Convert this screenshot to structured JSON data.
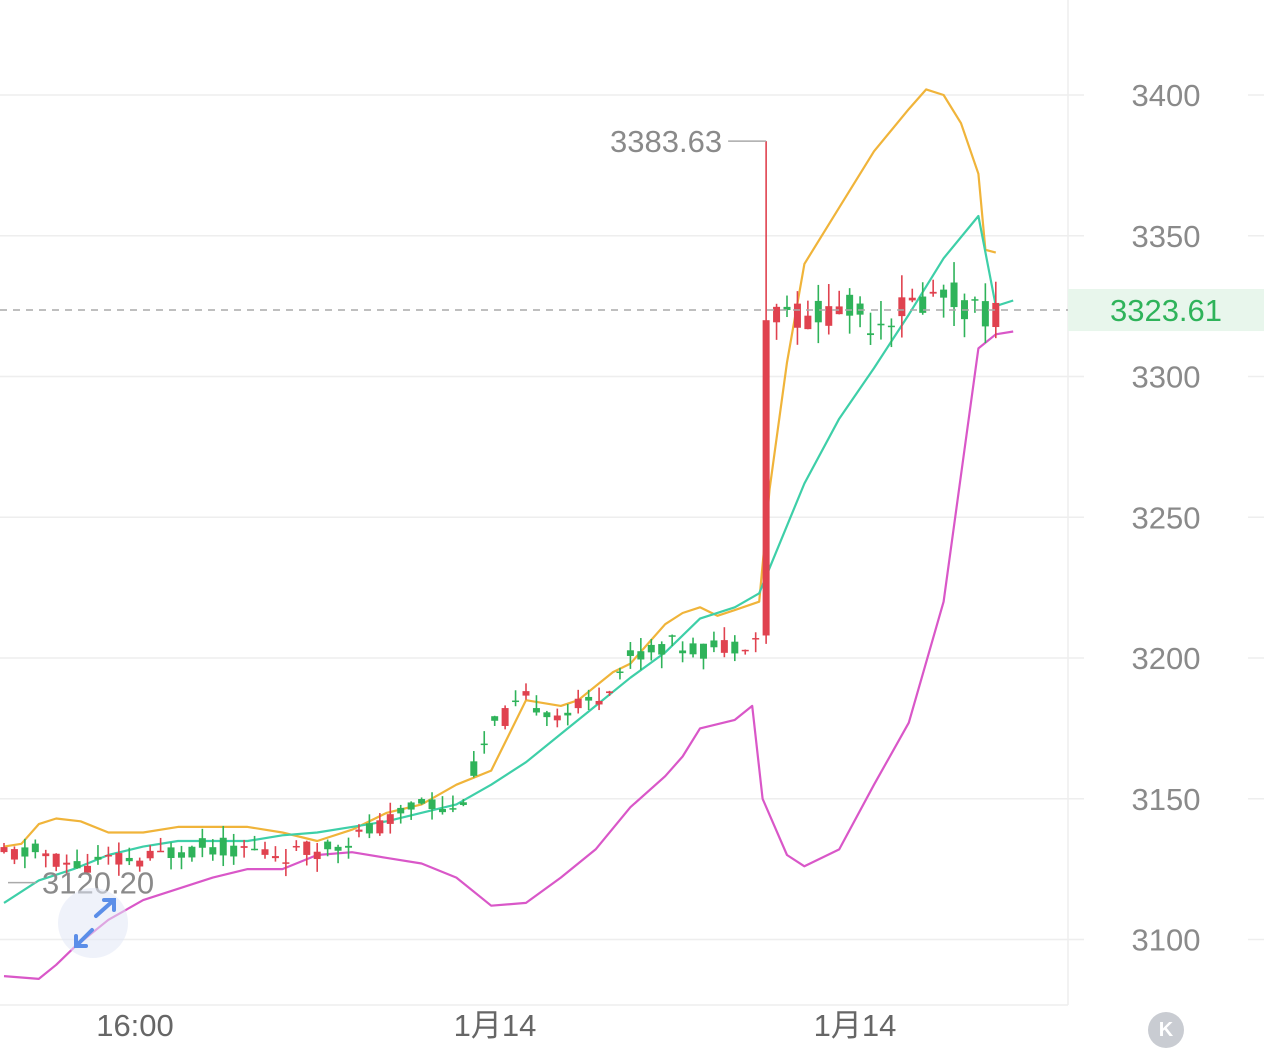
{
  "chart_data": {
    "type": "candlestick",
    "title": "",
    "y_axis": {
      "ticks": [
        3100,
        3150,
        3200,
        3250,
        3300,
        3350,
        3400
      ],
      "range": [
        3080,
        3430
      ],
      "position": "right"
    },
    "x_axis": {
      "ticks": [
        "16:00",
        "1月14",
        "1月14"
      ]
    },
    "current_price": {
      "label": "3323.61",
      "value": 3323.61,
      "color": "#2fb35a"
    },
    "max_marker": {
      "label": "3383.63",
      "value": 3383.63
    },
    "min_marker": {
      "label": "3120.20",
      "value": 3120.2
    },
    "colors": {
      "up": "#e0424f",
      "down": "#2fb35a",
      "upper_band": "#f0b43a",
      "middle_band": "#3ecfa8",
      "lower_band": "#d957c8",
      "grid": "#eeeeee",
      "axis_text": "#8a8a8a"
    },
    "upper_band": [
      [
        0,
        3133
      ],
      [
        5,
        3134
      ],
      [
        10,
        3141
      ],
      [
        15,
        3143
      ],
      [
        22,
        3142
      ],
      [
        30,
        3138
      ],
      [
        40,
        3138
      ],
      [
        50,
        3140
      ],
      [
        60,
        3140
      ],
      [
        70,
        3140
      ],
      [
        80,
        3138
      ],
      [
        90,
        3135
      ],
      [
        100,
        3139
      ],
      [
        110,
        3145
      ],
      [
        120,
        3148
      ],
      [
        130,
        3155
      ],
      [
        140,
        3160
      ],
      [
        150,
        3185
      ],
      [
        160,
        3183
      ],
      [
        165,
        3185
      ],
      [
        170,
        3190
      ],
      [
        175,
        3195
      ],
      [
        180,
        3198
      ],
      [
        185,
        3205
      ],
      [
        190,
        3212
      ],
      [
        195,
        3216
      ],
      [
        200,
        3218
      ],
      [
        205,
        3215
      ],
      [
        210,
        3217
      ],
      [
        217,
        3220
      ],
      [
        220,
        3260
      ],
      [
        225,
        3305
      ],
      [
        230,
        3340
      ],
      [
        240,
        3360
      ],
      [
        250,
        3380
      ],
      [
        260,
        3395
      ],
      [
        265,
        3402
      ],
      [
        270,
        3400
      ],
      [
        275,
        3390
      ],
      [
        280,
        3372
      ],
      [
        282,
        3345
      ],
      [
        285,
        3344
      ]
    ],
    "middle_band": [
      [
        0,
        3113
      ],
      [
        10,
        3121
      ],
      [
        20,
        3125
      ],
      [
        30,
        3130
      ],
      [
        40,
        3133
      ],
      [
        50,
        3135
      ],
      [
        60,
        3135
      ],
      [
        70,
        3135
      ],
      [
        80,
        3137
      ],
      [
        90,
        3138
      ],
      [
        100,
        3140
      ],
      [
        110,
        3142
      ],
      [
        120,
        3145
      ],
      [
        130,
        3148
      ],
      [
        140,
        3155
      ],
      [
        150,
        3163
      ],
      [
        160,
        3173
      ],
      [
        170,
        3183
      ],
      [
        180,
        3193
      ],
      [
        190,
        3202
      ],
      [
        200,
        3214
      ],
      [
        210,
        3218
      ],
      [
        217,
        3223
      ],
      [
        220,
        3232
      ],
      [
        230,
        3262
      ],
      [
        240,
        3285
      ],
      [
        250,
        3303
      ],
      [
        260,
        3322
      ],
      [
        270,
        3342
      ],
      [
        280,
        3357
      ],
      [
        285,
        3325
      ],
      [
        290,
        3327
      ]
    ],
    "lower_band": [
      [
        0,
        3087
      ],
      [
        10,
        3086
      ],
      [
        15,
        3091
      ],
      [
        20,
        3097
      ],
      [
        30,
        3107
      ],
      [
        40,
        3114
      ],
      [
        50,
        3118
      ],
      [
        60,
        3122
      ],
      [
        70,
        3125
      ],
      [
        80,
        3125
      ],
      [
        90,
        3130
      ],
      [
        100,
        3131
      ],
      [
        110,
        3129
      ],
      [
        120,
        3127
      ],
      [
        130,
        3122
      ],
      [
        140,
        3112
      ],
      [
        150,
        3113
      ],
      [
        160,
        3122
      ],
      [
        170,
        3132
      ],
      [
        180,
        3147
      ],
      [
        190,
        3158
      ],
      [
        195,
        3165
      ],
      [
        200,
        3175
      ],
      [
        210,
        3178
      ],
      [
        215,
        3183
      ],
      [
        218,
        3150
      ],
      [
        225,
        3130
      ],
      [
        230,
        3126
      ],
      [
        240,
        3132
      ],
      [
        250,
        3155
      ],
      [
        260,
        3177
      ],
      [
        270,
        3220
      ],
      [
        275,
        3265
      ],
      [
        280,
        3310
      ],
      [
        285,
        3315
      ],
      [
        290,
        3316
      ]
    ]
  }
}
